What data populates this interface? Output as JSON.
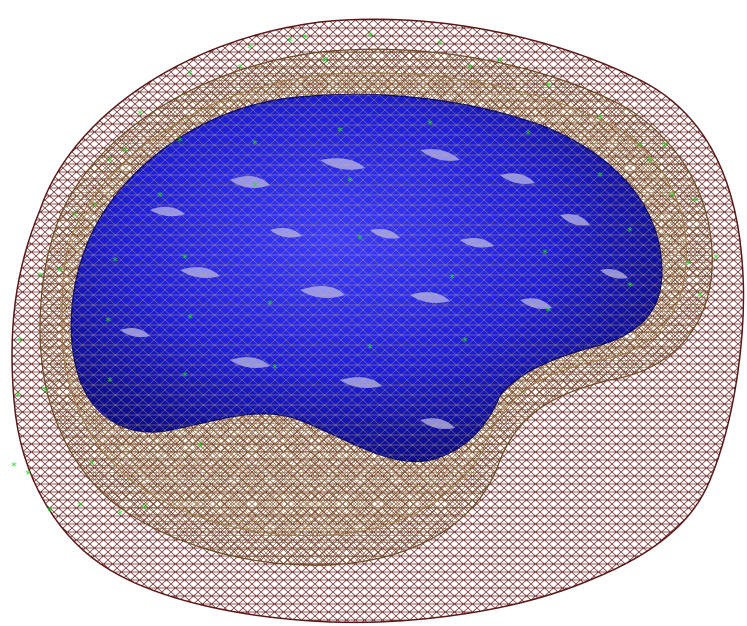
{
  "scene": {
    "background": "#ffffff",
    "meshes": [
      {
        "name": "scalp-mesh",
        "color": "#6b1f1f"
      },
      {
        "name": "skull-mesh",
        "color": "#8a6a3a"
      },
      {
        "name": "inner-skull-mesh",
        "color": "#b8a070"
      },
      {
        "name": "cortex-surface",
        "color": "#1a1ad8",
        "highlight": "#b8b8f0"
      }
    ],
    "electrode_marker": {
      "glyph": "*",
      "color": "#22dd22"
    }
  }
}
